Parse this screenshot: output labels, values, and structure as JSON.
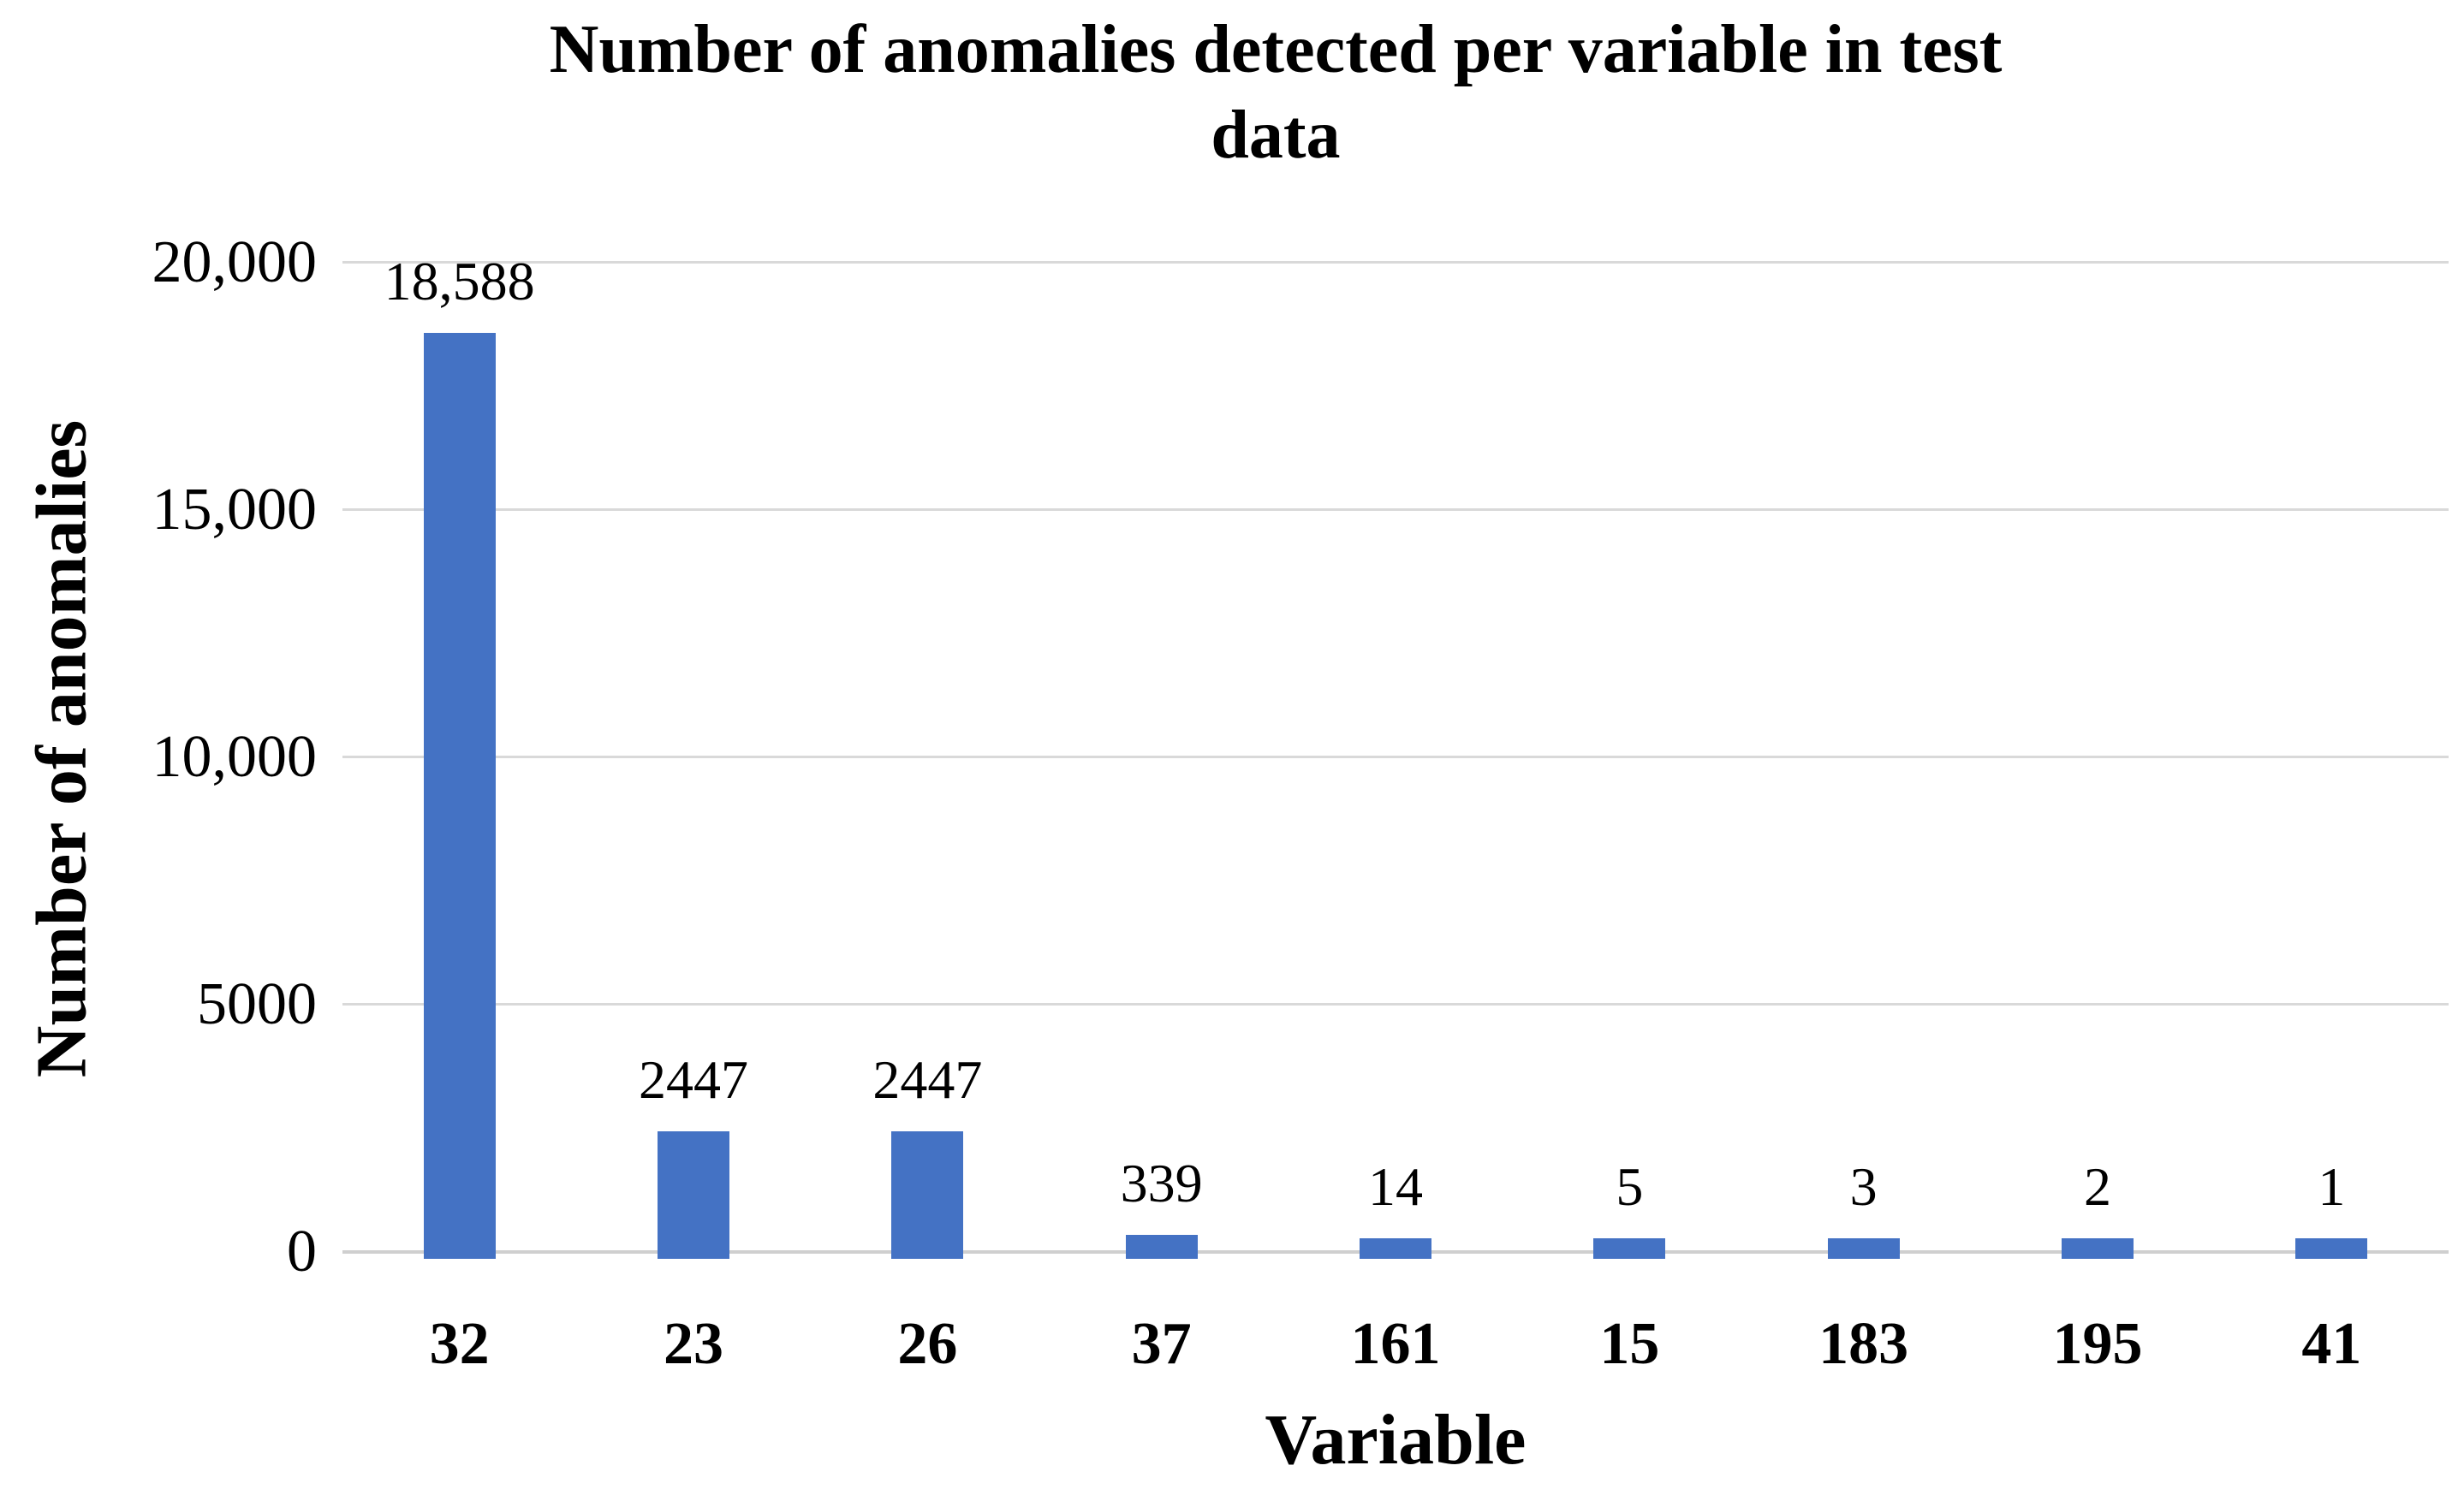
{
  "header": {
    "title_line1": "Number of anomalies detected per variable in test",
    "title_line2": "data"
  },
  "chart_data": {
    "type": "bar",
    "title": "Number of anomalies detected per variable in test data",
    "xlabel": "Variable",
    "ylabel": "Number of anomalies",
    "categories": [
      "32",
      "23",
      "26",
      "37",
      "161",
      "15",
      "183",
      "195",
      "41"
    ],
    "values": [
      18588,
      2447,
      2447,
      339,
      14,
      5,
      3,
      2,
      1
    ],
    "value_labels": [
      "18,588",
      "2447",
      "2447",
      "339",
      "14",
      "5",
      "3",
      "2",
      "1"
    ],
    "y_ticks": [
      {
        "value": 0,
        "label": "0"
      },
      {
        "value": 5000,
        "label": "5000"
      },
      {
        "value": 10000,
        "label": "10,000"
      },
      {
        "value": 15000,
        "label": "15,000"
      },
      {
        "value": 20000,
        "label": "20,000"
      }
    ],
    "ylim": [
      0,
      20000
    ],
    "bar_color": "#4472C4",
    "gridline_color": "#D9D9D9",
    "axisline_color": "#CFCFCF",
    "grid": "horizontal",
    "legend_position": "none"
  }
}
